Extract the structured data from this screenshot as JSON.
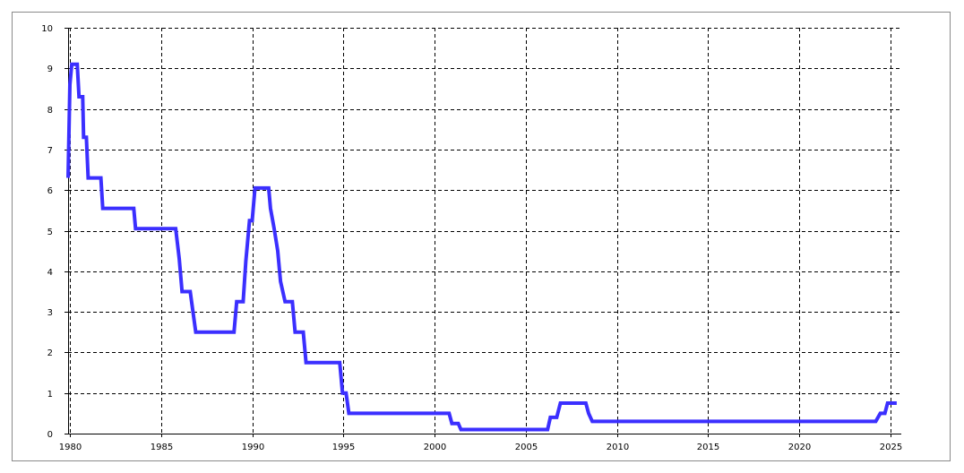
{
  "chart_data": {
    "type": "line",
    "title": "",
    "xlabel": "",
    "ylabel": "",
    "xlim": [
      1979.9,
      2025.6
    ],
    "ylim": [
      0,
      10
    ],
    "grid": true,
    "line_color": "#3b2fff",
    "x_ticks": [
      1980,
      1985,
      1990,
      1995,
      2000,
      2005,
      2010,
      2015,
      2020,
      2025
    ],
    "x_tick_labels": [
      "1980",
      "1985",
      "1990",
      "1995",
      "2000",
      "2005",
      "2010",
      "2015",
      "2020",
      "2025"
    ],
    "y_ticks": [
      0,
      1,
      2,
      3,
      4,
      5,
      6,
      7,
      8,
      9,
      10
    ],
    "y_tick_labels": [
      "0",
      "1",
      "2",
      "3",
      "4",
      "5",
      "6",
      "7",
      "8",
      "9",
      "10"
    ],
    "series": [
      {
        "points": [
          [
            1979.9,
            6.3
          ],
          [
            1980.0,
            8.6
          ],
          [
            1980.1,
            9.1
          ],
          [
            1980.4,
            9.1
          ],
          [
            1980.5,
            8.3
          ],
          [
            1980.7,
            8.3
          ],
          [
            1980.75,
            7.3
          ],
          [
            1980.9,
            7.3
          ],
          [
            1981.0,
            6.3
          ],
          [
            1981.7,
            6.3
          ],
          [
            1981.8,
            5.55
          ],
          [
            1983.5,
            5.55
          ],
          [
            1983.6,
            5.05
          ],
          [
            1985.8,
            5.05
          ],
          [
            1986.0,
            4.3
          ],
          [
            1986.15,
            3.5
          ],
          [
            1986.6,
            3.5
          ],
          [
            1986.9,
            2.5
          ],
          [
            1989.0,
            2.5
          ],
          [
            1989.15,
            3.25
          ],
          [
            1989.5,
            3.25
          ],
          [
            1989.65,
            4.25
          ],
          [
            1989.85,
            5.25
          ],
          [
            1990.0,
            5.25
          ],
          [
            1990.15,
            6.05
          ],
          [
            1990.9,
            6.05
          ],
          [
            1991.0,
            5.55
          ],
          [
            1991.2,
            5.05
          ],
          [
            1991.4,
            4.5
          ],
          [
            1991.55,
            3.75
          ],
          [
            1991.8,
            3.25
          ],
          [
            1992.2,
            3.25
          ],
          [
            1992.35,
            2.5
          ],
          [
            1992.8,
            2.5
          ],
          [
            1992.95,
            1.75
          ],
          [
            1994.8,
            1.75
          ],
          [
            1994.95,
            1.0
          ],
          [
            1995.15,
            1.0
          ],
          [
            1995.3,
            0.5
          ],
          [
            2000.8,
            0.5
          ],
          [
            2000.95,
            0.25
          ],
          [
            2001.3,
            0.25
          ],
          [
            2001.45,
            0.1
          ],
          [
            2006.2,
            0.1
          ],
          [
            2006.35,
            0.4
          ],
          [
            2006.7,
            0.4
          ],
          [
            2006.9,
            0.75
          ],
          [
            2008.3,
            0.75
          ],
          [
            2008.45,
            0.5
          ],
          [
            2008.65,
            0.3
          ],
          [
            2024.2,
            0.3
          ],
          [
            2024.45,
            0.5
          ],
          [
            2024.7,
            0.5
          ],
          [
            2024.85,
            0.75
          ],
          [
            2025.35,
            0.75
          ]
        ]
      }
    ]
  }
}
